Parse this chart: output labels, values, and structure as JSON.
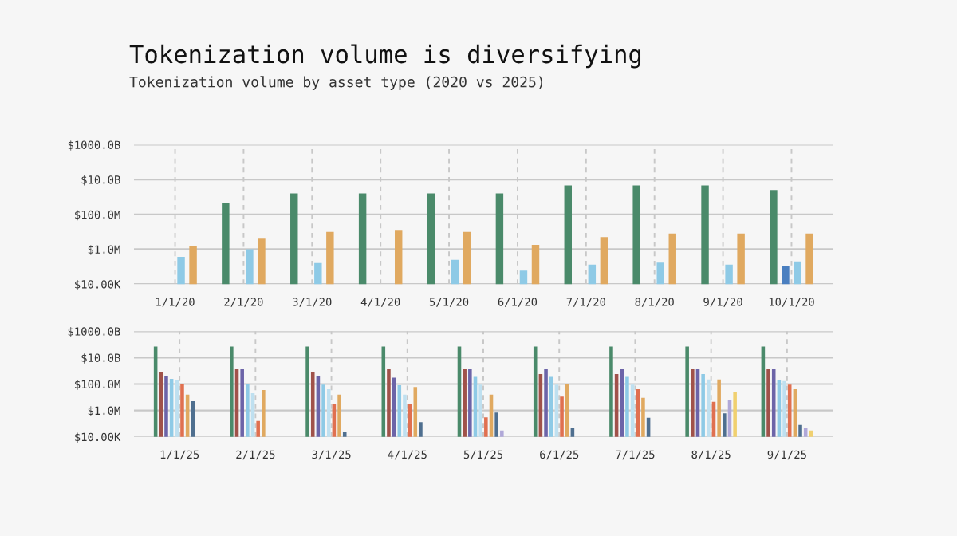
{
  "chart_data": [
    {
      "type": "bar",
      "title": "Tokenization volume is diversifying",
      "subtitle": "Tokenization volume by asset type (2020 vs 2025)",
      "categories": [
        "1/1/20",
        "2/1/20",
        "3/1/20",
        "4/1/20",
        "5/1/20",
        "6/1/20",
        "7/1/20",
        "8/1/20",
        "9/1/20",
        "10/1/20"
      ],
      "series": [
        {
          "color": "#4a8a6a",
          "values": [
            null,
            460000000,
            1600000000,
            1600000000,
            1600000000,
            1600000000,
            4600000000,
            4600000000,
            4600000000,
            2500000000
          ]
        },
        {
          "color": "#4a7fc0",
          "values": [
            null,
            null,
            null,
            null,
            null,
            null,
            null,
            null,
            null,
            110000
          ]
        },
        {
          "color": "#8ecae6",
          "values": [
            370000,
            1000000,
            160000,
            null,
            250000,
            60000,
            130000,
            170000,
            130000,
            200000
          ]
        },
        {
          "color": "#e0a960",
          "values": [
            1500000,
            4000000,
            10000000,
            13000000,
            10000000,
            1800000,
            5000000,
            8000000,
            8000000,
            8000000
          ]
        }
      ],
      "log": true,
      "ylim": [
        10000,
        1000000000000
      ],
      "yticks": [
        {
          "value": 10000,
          "label": "$10.00K"
        },
        {
          "value": 1000000,
          "label": "$1.0M"
        },
        {
          "value": 100000000,
          "label": "$100.0M"
        },
        {
          "value": 10000000000,
          "label": "$10.0B"
        },
        {
          "value": 1000000000000,
          "label": "$1000.0B"
        }
      ],
      "grid": true
    },
    {
      "type": "bar",
      "categories": [
        "1/1/25",
        "2/1/25",
        "3/1/25",
        "4/1/25",
        "5/1/25",
        "6/1/25",
        "7/1/25",
        "8/1/25",
        "9/1/25"
      ],
      "series": [
        {
          "color": "#4a8a6a",
          "values": [
            70000000000,
            70000000000,
            70000000000,
            70000000000,
            70000000000,
            70000000000,
            70000000000,
            70000000000,
            70000000000
          ]
        },
        {
          "color": "#a0524a",
          "values": [
            800000000,
            1300000000,
            800000000,
            1300000000,
            1300000000,
            560000000,
            560000000,
            1300000000,
            1300000000
          ]
        },
        {
          "color": "#6c64a8",
          "values": [
            400000000,
            1300000000,
            400000000,
            300000000,
            1300000000,
            1300000000,
            1300000000,
            1300000000,
            1300000000
          ]
        },
        {
          "color": "#8ecae6",
          "values": [
            250000000,
            100000000,
            90000000,
            80000000,
            350000000,
            350000000,
            350000000,
            560000000,
            200000000
          ]
        },
        {
          "color": "#bfe0f0",
          "values": [
            200000000,
            20000000,
            40000000,
            16000000,
            90000000,
            90000000,
            90000000,
            220000000,
            170000000
          ]
        },
        {
          "color": "#e07050",
          "values": [
            100000000,
            160000,
            3000000,
            3000000,
            300000,
            11000000,
            40000000,
            4500000,
            90000000
          ]
        },
        {
          "color": "#e0a960",
          "values": [
            16000000,
            35000000,
            16000000,
            60000000,
            16000000,
            100000000,
            9000000,
            220000000,
            40000000
          ]
        },
        {
          "color": "#4f6f8f",
          "values": [
            5000000,
            null,
            25000,
            130000,
            700000,
            50000,
            280000,
            600000,
            80000
          ]
        },
        {
          "color": "#b0a8d8",
          "values": [
            null,
            null,
            null,
            null,
            30000,
            null,
            null,
            6000000,
            50000
          ]
        },
        {
          "color": "#f0d070",
          "values": [
            null,
            null,
            null,
            null,
            null,
            null,
            null,
            25000000,
            30000
          ]
        }
      ],
      "log": true,
      "ylim": [
        10000,
        1000000000000
      ],
      "yticks": [
        {
          "value": 10000,
          "label": "$10.00K"
        },
        {
          "value": 1000000,
          "label": "$1.0M"
        },
        {
          "value": 100000000,
          "label": "$100.0M"
        },
        {
          "value": 10000000000,
          "label": "$10.0B"
        },
        {
          "value": 1000000000000,
          "label": "$1000.0B"
        }
      ],
      "grid": true
    }
  ]
}
